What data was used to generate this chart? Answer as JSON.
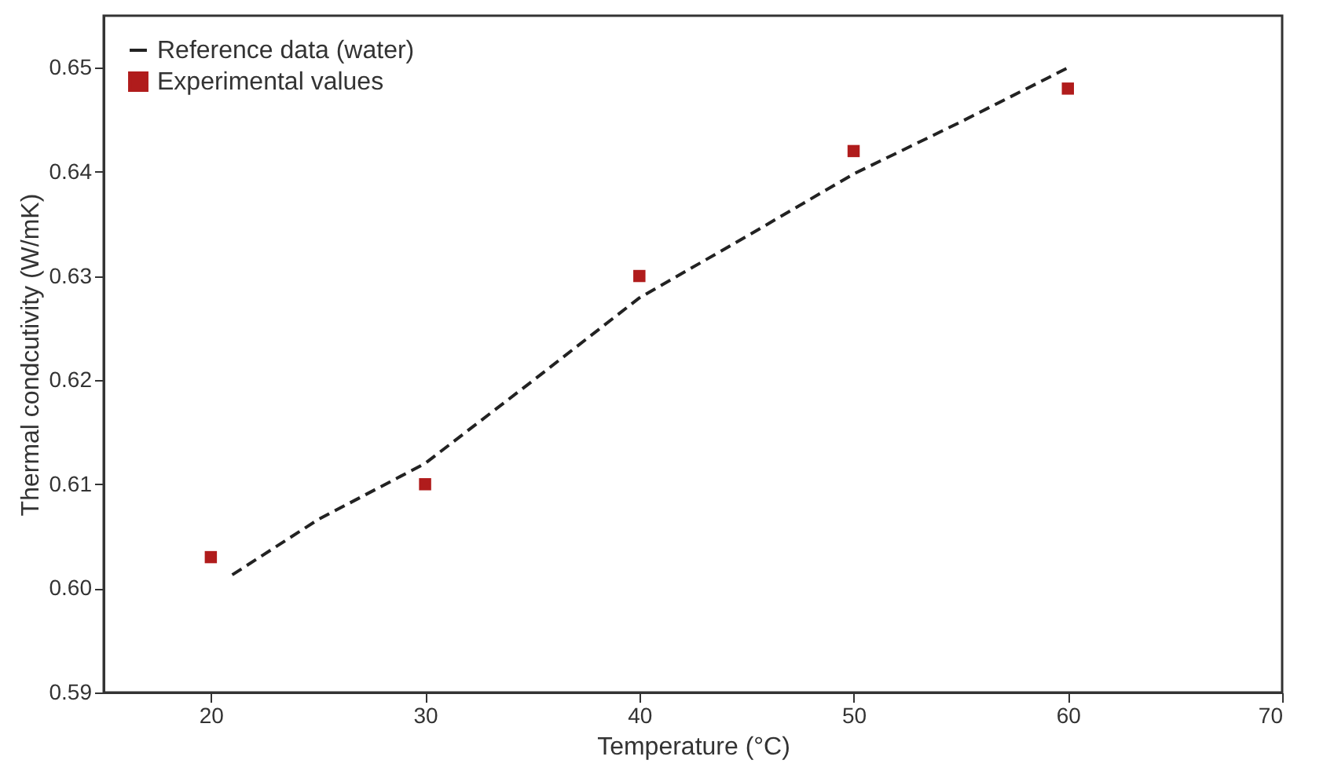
{
  "chart_data": {
    "type": "scatter",
    "xlabel": "Temperature (°C)",
    "ylabel": "Thermal condcutivity (W/mK)",
    "xlim": [
      15,
      70
    ],
    "xticks": [
      20,
      30,
      40,
      50,
      60,
      70
    ],
    "ylim": [
      0.59,
      0.655
    ],
    "yticks": [
      0.59,
      {
        "value": 0.6,
        "label": "0.60"
      },
      0.61,
      0.62,
      0.63,
      0.64,
      0.65
    ],
    "grid": false,
    "legend": "top left",
    "series": [
      {
        "name": "Reference data (water)",
        "type": "line",
        "line_style": "dashed",
        "marker": "none",
        "color": "#222222",
        "x": [
          21,
          25,
          30,
          35,
          40,
          45,
          50,
          55,
          60
        ],
        "values": [
          0.6013,
          0.6066,
          0.612,
          0.6199,
          0.6279,
          0.6338,
          0.6398,
          0.6448,
          0.65
        ]
      },
      {
        "name": "Experimental values",
        "marker": "square",
        "color": "#b01c1c",
        "x": [
          20,
          30,
          40,
          50,
          60
        ],
        "values": [
          0.603,
          0.61,
          0.63,
          0.642,
          0.648
        ]
      }
    ]
  }
}
